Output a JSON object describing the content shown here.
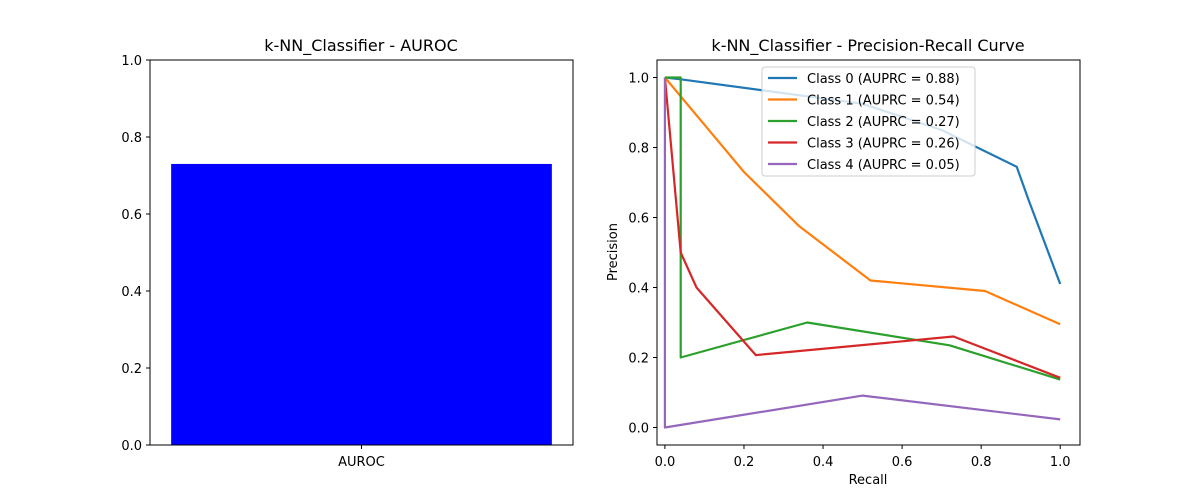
{
  "chart_data": [
    {
      "type": "bar",
      "title": "k-NN_Classifier - AUROC",
      "categories": [
        "AUROC"
      ],
      "values": [
        0.73
      ],
      "ylim": [
        0,
        1
      ],
      "yticks": [
        "0.0",
        "0.2",
        "0.4",
        "0.6",
        "0.8",
        "1.0"
      ],
      "xlabel": "",
      "ylabel": "",
      "grid": false,
      "colors": {
        "bar": "#0000ff"
      }
    },
    {
      "type": "line",
      "title": "k-NN_Classifier - Precision-Recall Curve",
      "xlabel": "Recall",
      "ylabel": "Precision",
      "xlim": [
        -0.02,
        1.05
      ],
      "ylim": [
        -0.05,
        1.05
      ],
      "xticks": [
        "0.0",
        "0.2",
        "0.4",
        "0.6",
        "0.8",
        "1.0"
      ],
      "yticks": [
        "0.0",
        "0.2",
        "0.4",
        "0.6",
        "0.8",
        "1.0"
      ],
      "grid": false,
      "legend_position": "top-right",
      "series": [
        {
          "name": "Class 0 (AUPRC = 0.88)",
          "color": "#1f77b4",
          "x": [
            0.0,
            0.04,
            0.5,
            0.7,
            0.89,
            0.92,
            1.0
          ],
          "y": [
            1.0,
            0.995,
            0.925,
            0.85,
            0.745,
            0.65,
            0.41
          ]
        },
        {
          "name": "Class 1 (AUPRC = 0.54)",
          "color": "#ff7f0e",
          "x": [
            0.0,
            0.2,
            0.34,
            0.52,
            0.81,
            1.0
          ],
          "y": [
            1.0,
            0.73,
            0.575,
            0.42,
            0.39,
            0.295
          ]
        },
        {
          "name": "Class 2 (AUPRC = 0.27)",
          "color": "#2ca02c",
          "x": [
            0.0,
            0.04,
            0.04,
            0.36,
            0.72,
            1.0
          ],
          "y": [
            1.0,
            1.0,
            0.2,
            0.3,
            0.235,
            0.137
          ]
        },
        {
          "name": "Class 3 (AUPRC = 0.26)",
          "color": "#d62728",
          "x": [
            0.0,
            0.04,
            0.08,
            0.23,
            0.73,
            1.0
          ],
          "y": [
            1.0,
            0.5,
            0.4,
            0.207,
            0.26,
            0.142
          ]
        },
        {
          "name": "Class 4 (AUPRC = 0.05)",
          "color": "#9467bd",
          "x": [
            0.0,
            0.0,
            0.5,
            1.0
          ],
          "y": [
            1.0,
            0.0,
            0.091,
            0.023
          ]
        }
      ]
    }
  ]
}
